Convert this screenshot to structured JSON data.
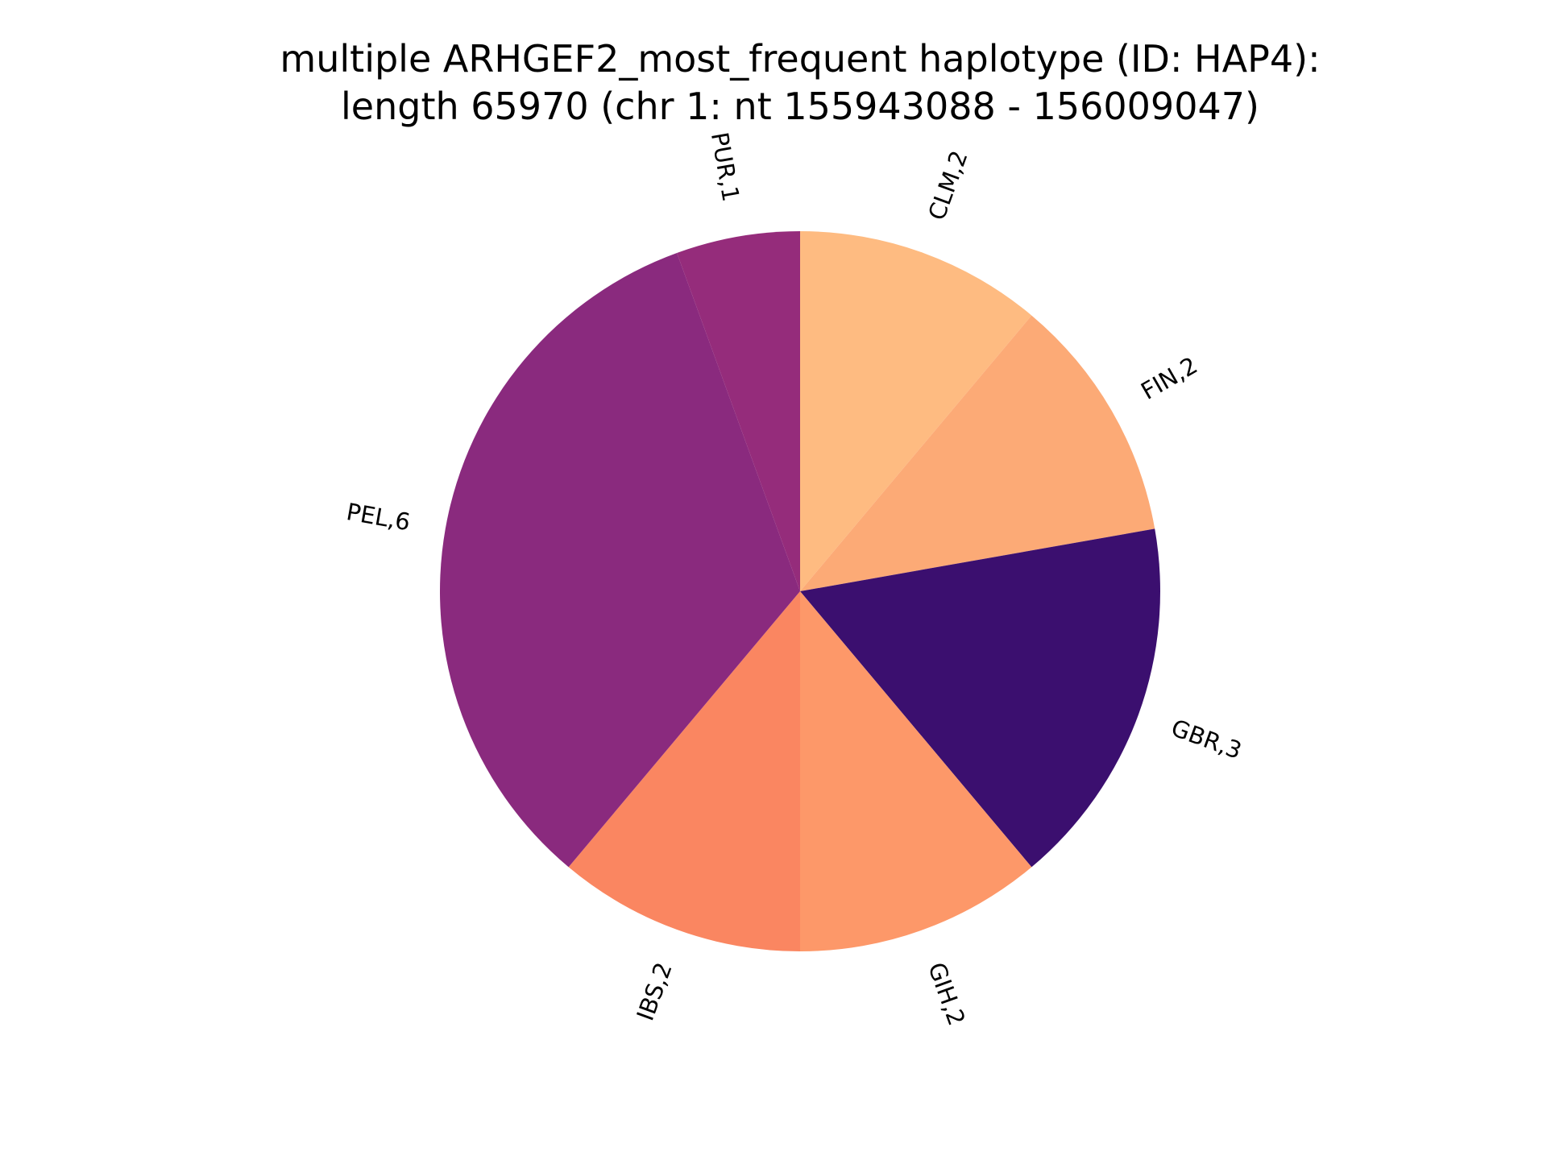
{
  "chart_data": {
    "type": "pie",
    "title_lines": [
      "multiple ARHGEF2_most_frequent haplotype (ID: HAP4):",
      "length 65970 (chr 1: nt 155943088 - 156009047)"
    ],
    "start_angle_deg": 90,
    "direction": "clockwise",
    "slices": [
      {
        "label": "CLM,2",
        "value": 2,
        "color": "#febb81"
      },
      {
        "label": "FIN,2",
        "value": 2,
        "color": "#fcaa76"
      },
      {
        "label": "GBR,3",
        "value": 3,
        "color": "#3b0f6f"
      },
      {
        "label": "GIH,2",
        "value": 2,
        "color": "#fd9869"
      },
      {
        "label": "IBS,2",
        "value": 2,
        "color": "#fa8661"
      },
      {
        "label": "PEL,6",
        "value": 6,
        "color": "#8a2a7e"
      },
      {
        "label": "PUR,1",
        "value": 1,
        "color": "#952c7b"
      }
    ]
  }
}
